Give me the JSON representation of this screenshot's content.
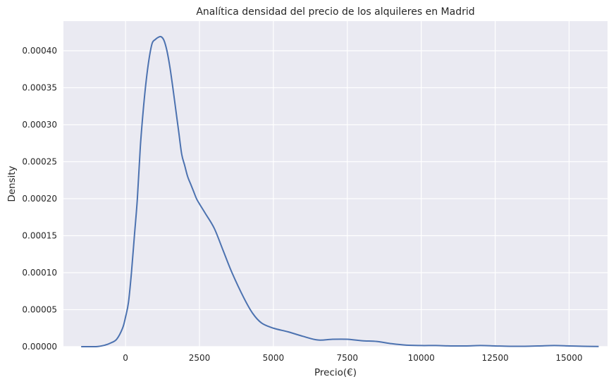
{
  "chart_data": {
    "type": "line",
    "title": "Analítica densidad del precio de los alquileres en Madrid",
    "xlabel": "Precio(€)",
    "ylabel": "Density",
    "xlim": [
      -2100,
      16300
    ],
    "ylim": [
      0,
      0.00044
    ],
    "xticks": [
      0,
      2500,
      5000,
      7500,
      10000,
      12500,
      15000
    ],
    "xtick_labels": [
      "0",
      "2500",
      "5000",
      "7500",
      "10000",
      "12500",
      "15000"
    ],
    "yticks": [
      0,
      5e-05,
      0.0001,
      0.00015,
      0.0002,
      0.00025,
      0.0003,
      0.00035,
      0.0004
    ],
    "ytick_labels": [
      "0.00000",
      "0.00005",
      "0.00010",
      "0.00015",
      "0.00020",
      "0.00025",
      "0.00030",
      "0.00035",
      "0.00040"
    ],
    "grid": true,
    "colors": {
      "background": "#EAEAF2",
      "grid": "#FFFFFF",
      "line": "#4C72B0"
    },
    "series": [
      {
        "x": [
          -1500,
          -1000,
          -700,
          -500,
          -300,
          -100,
          0,
          100,
          200,
          300,
          400,
          500,
          600,
          700,
          800,
          900,
          1000,
          1100,
          1200,
          1300,
          1400,
          1500,
          1600,
          1700,
          1800,
          1900,
          2000,
          2100,
          2200,
          2300,
          2400,
          2500,
          2700,
          3000,
          3300,
          3600,
          4000,
          4300,
          4600,
          5000,
          5500,
          6000,
          6500,
          7000,
          7500,
          8000,
          8500,
          9000,
          9500,
          10000,
          10500,
          11000,
          11500,
          12000,
          12500,
          13000,
          13500,
          14000,
          14500,
          15000,
          15500,
          16000
        ],
        "y": [
          0,
          0,
          2e-06,
          5e-06,
          1e-05,
          2.5e-05,
          4e-05,
          6e-05,
          0.0001,
          0.00015,
          0.0002,
          0.00027,
          0.00032,
          0.00036,
          0.00039,
          0.00041,
          0.000415,
          0.000418,
          0.000419,
          0.000414,
          0.0004,
          0.000378,
          0.00035,
          0.00032,
          0.00029,
          0.00026,
          0.000245,
          0.00023,
          0.00022,
          0.00021,
          0.0002,
          0.000193,
          0.00018,
          0.00016,
          0.00013,
          0.0001,
          6.6e-05,
          4.5e-05,
          3.2e-05,
          2.5e-05,
          2e-05,
          1.4e-05,
          9e-06,
          1e-05,
          1e-05,
          8e-06,
          7e-06,
          4e-06,
          2e-06,
          1.5e-06,
          1.5e-06,
          1e-06,
          1e-06,
          1.5e-06,
          1e-06,
          5e-07,
          5e-07,
          1e-06,
          1.5e-06,
          1e-06,
          5e-07,
          2e-07
        ]
      }
    ]
  }
}
